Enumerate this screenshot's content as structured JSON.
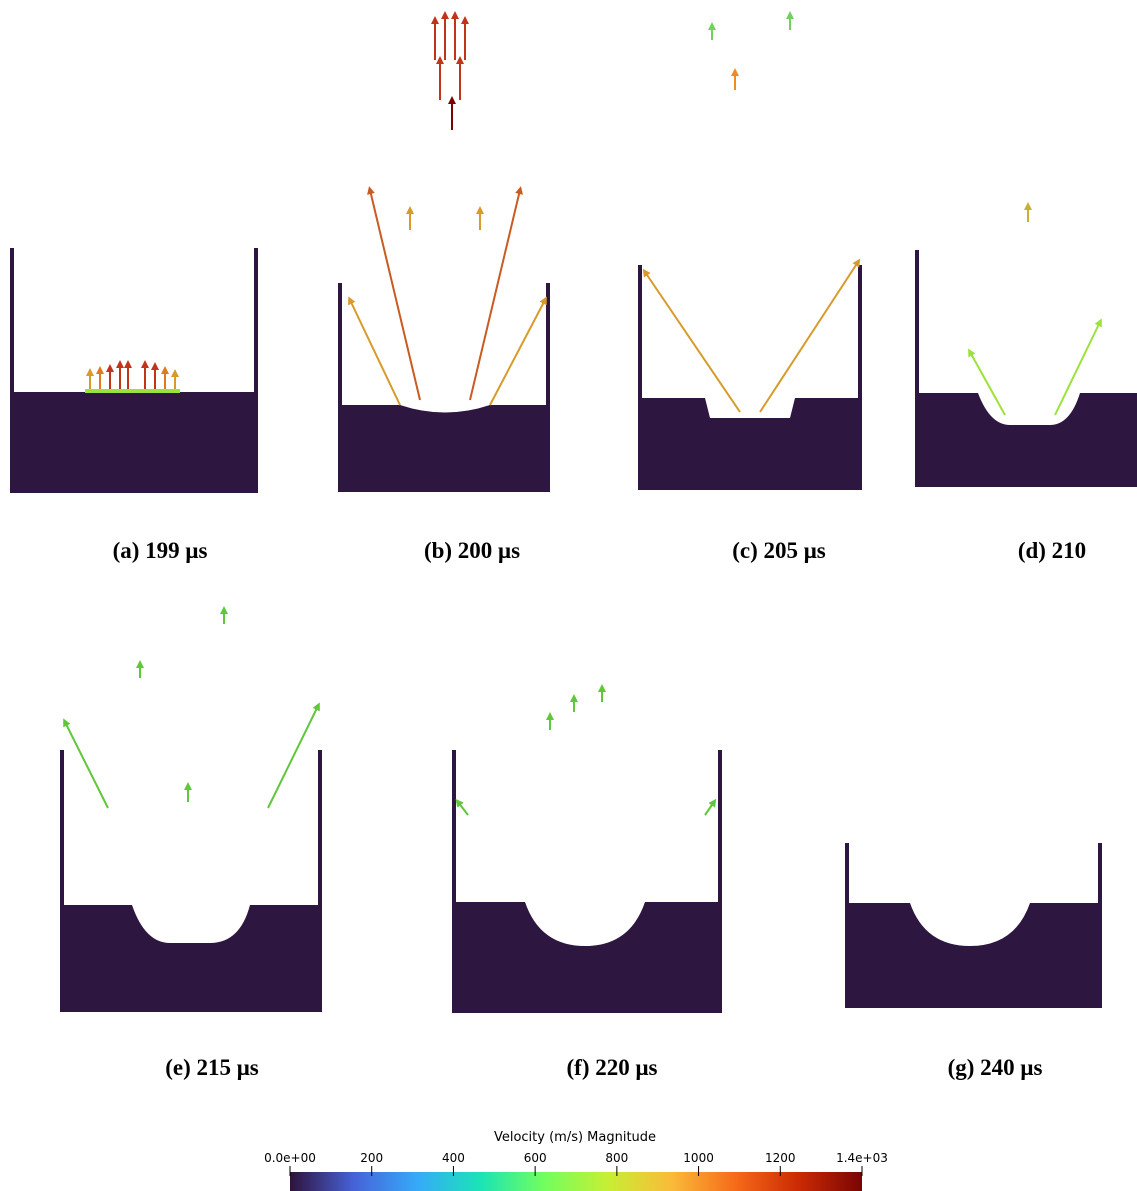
{
  "captions": [
    "(a)  199 μs",
    "(b)  200 μs",
    "(c)  205 μs",
    "(d)  210",
    "(e)  215 μs",
    "(f)  220 μs",
    "(g)  240 μs"
  ],
  "colorbar": {
    "title": "Velocity (m/s) Magnitude",
    "lim": [
      0,
      1400
    ],
    "ticks": [
      {
        "value": 0,
        "label": "0.0e+00"
      },
      200,
      400,
      600,
      800,
      1000,
      1200,
      {
        "value": 1400,
        "label": "1.4e+03"
      }
    ],
    "colors": [
      "#30123b",
      "#4662d7",
      "#36aaf9",
      "#1ae4b6",
      "#72fe5e",
      "#c7ef34",
      "#fabb39",
      "#f66b19",
      "#cb2a04",
      "#7a0403"
    ]
  }
}
